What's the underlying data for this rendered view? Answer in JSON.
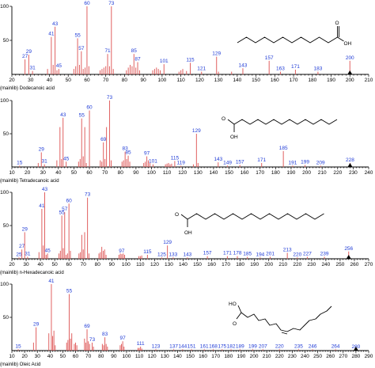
{
  "chart_data": [
    {
      "type": "bar",
      "caption": "(mainlib) Dodecanoic acid",
      "xlim": [
        20,
        210
      ],
      "ylim": [
        0,
        100
      ],
      "x_ticks": [
        20,
        30,
        40,
        50,
        60,
        70,
        80,
        90,
        100,
        110,
        120,
        130,
        140,
        150,
        160,
        170,
        180,
        190,
        200,
        210
      ],
      "y_ticks": [
        50,
        100
      ],
      "peaks": [
        {
          "x": 27,
          "y": 22,
          "label": "27"
        },
        {
          "x": 29,
          "y": 29,
          "label": "29"
        },
        {
          "x": 31,
          "y": 5,
          "label": "31"
        },
        {
          "x": 41,
          "y": 55,
          "label": "41"
        },
        {
          "x": 43,
          "y": 70,
          "label": "43"
        },
        {
          "x": 45,
          "y": 8,
          "label": "45"
        },
        {
          "x": 55,
          "y": 53,
          "label": "55"
        },
        {
          "x": 57,
          "y": 34,
          "label": "57"
        },
        {
          "x": 60,
          "y": 100,
          "label": "60"
        },
        {
          "x": 71,
          "y": 30,
          "label": "71"
        },
        {
          "x": 73,
          "y": 100,
          "label": "73"
        },
        {
          "x": 85,
          "y": 30,
          "label": "85"
        },
        {
          "x": 87,
          "y": 18,
          "label": "87"
        },
        {
          "x": 101,
          "y": 15,
          "label": "101"
        },
        {
          "x": 115,
          "y": 17,
          "label": "115"
        },
        {
          "x": 121,
          "y": 4,
          "label": "121"
        },
        {
          "x": 129,
          "y": 26,
          "label": "129"
        },
        {
          "x": 143,
          "y": 9,
          "label": "143"
        },
        {
          "x": 157,
          "y": 20,
          "label": "157"
        },
        {
          "x": 163,
          "y": 4,
          "label": "163"
        },
        {
          "x": 171,
          "y": 7,
          "label": "171"
        },
        {
          "x": 183,
          "y": 4,
          "label": "183"
        },
        {
          "x": 200,
          "y": 20,
          "label": "200"
        }
      ],
      "minor": [
        [
          39,
          8
        ],
        [
          42,
          14
        ],
        [
          44,
          6
        ],
        [
          53,
          8
        ],
        [
          54,
          12
        ],
        [
          56,
          14
        ],
        [
          58,
          8
        ],
        [
          59,
          10
        ],
        [
          61,
          12
        ],
        [
          67,
          6
        ],
        [
          68,
          8
        ],
        [
          69,
          10
        ],
        [
          70,
          12
        ],
        [
          72,
          12
        ],
        [
          74,
          8
        ],
        [
          81,
          6
        ],
        [
          82,
          10
        ],
        [
          83,
          14
        ],
        [
          84,
          12
        ],
        [
          86,
          10
        ],
        [
          88,
          6
        ],
        [
          95,
          6
        ],
        [
          96,
          8
        ],
        [
          97,
          10
        ],
        [
          98,
          8
        ],
        [
          99,
          6
        ],
        [
          109,
          4
        ],
        [
          110,
          6
        ],
        [
          111,
          8
        ],
        [
          113,
          5
        ],
        [
          130,
          4
        ],
        [
          137,
          4
        ]
      ],
      "molecule": "lauric"
    },
    {
      "type": "bar",
      "caption": "(mainlib) Tetradecanoic acid",
      "xlim": [
        10,
        240
      ],
      "ylim": [
        0,
        100
      ],
      "x_ticks": [
        10,
        20,
        30,
        40,
        50,
        60,
        70,
        80,
        90,
        100,
        110,
        120,
        130,
        140,
        150,
        160,
        170,
        180,
        190,
        200,
        210,
        220,
        230,
        240
      ],
      "y_ticks": [
        50,
        100
      ],
      "peaks": [
        {
          "x": 15,
          "y": 2,
          "label": "15"
        },
        {
          "x": 29,
          "y": 22,
          "label": "29"
        },
        {
          "x": 31,
          "y": 4,
          "label": "31"
        },
        {
          "x": 43,
          "y": 74,
          "label": "43"
        },
        {
          "x": 45,
          "y": 8,
          "label": "45"
        },
        {
          "x": 55,
          "y": 73,
          "label": "55"
        },
        {
          "x": 60,
          "y": 85,
          "label": "60"
        },
        {
          "x": 69,
          "y": 37,
          "label": "69"
        },
        {
          "x": 73,
          "y": 100,
          "label": "73"
        },
        {
          "x": 83,
          "y": 23,
          "label": "83"
        },
        {
          "x": 85,
          "y": 17,
          "label": "85"
        },
        {
          "x": 97,
          "y": 16,
          "label": "97"
        },
        {
          "x": 101,
          "y": 4,
          "label": "101"
        },
        {
          "x": 115,
          "y": 9,
          "label": "115"
        },
        {
          "x": 119,
          "y": 2,
          "label": "119"
        },
        {
          "x": 129,
          "y": 50,
          "label": "129"
        },
        {
          "x": 143,
          "y": 7,
          "label": "143"
        },
        {
          "x": 149,
          "y": 2,
          "label": "149"
        },
        {
          "x": 157,
          "y": 3,
          "label": "157"
        },
        {
          "x": 171,
          "y": 6,
          "label": "171"
        },
        {
          "x": 185,
          "y": 24,
          "label": "185"
        },
        {
          "x": 191,
          "y": 2,
          "label": "191"
        },
        {
          "x": 199,
          "y": 3,
          "label": "199"
        },
        {
          "x": 209,
          "y": 2,
          "label": "209"
        },
        {
          "x": 228,
          "y": 6,
          "label": "228"
        }
      ],
      "minor": [
        [
          27,
          6
        ],
        [
          39,
          10
        ],
        [
          41,
          60
        ],
        [
          42,
          12
        ],
        [
          53,
          8
        ],
        [
          54,
          12
        ],
        [
          56,
          16
        ],
        [
          57,
          60
        ],
        [
          58,
          6
        ],
        [
          67,
          10
        ],
        [
          68,
          8
        ],
        [
          70,
          12
        ],
        [
          71,
          60
        ],
        [
          74,
          10
        ],
        [
          81,
          8
        ],
        [
          82,
          10
        ],
        [
          84,
          12
        ],
        [
          86,
          8
        ],
        [
          95,
          6
        ],
        [
          96,
          8
        ],
        [
          98,
          10
        ],
        [
          99,
          6
        ],
        [
          109,
          4
        ],
        [
          110,
          5
        ],
        [
          111,
          6
        ],
        [
          112,
          4
        ],
        [
          113,
          5
        ],
        [
          127,
          4
        ],
        [
          130,
          6
        ]
      ],
      "molecule": "myristic"
    },
    {
      "type": "bar",
      "caption": "(mainlib) n-Hexadecanoic acid",
      "xlim": [
        20,
        270
      ],
      "ylim": [
        0,
        100
      ],
      "x_ticks": [
        20,
        30,
        40,
        50,
        60,
        70,
        80,
        90,
        100,
        110,
        120,
        130,
        140,
        150,
        160,
        170,
        180,
        190,
        200,
        210,
        220,
        230,
        240,
        250,
        260,
        270
      ],
      "y_ticks": [
        50,
        100
      ],
      "peaks": [
        {
          "x": 25,
          "y": 2,
          "label": "25"
        },
        {
          "x": 27,
          "y": 14,
          "label": "27"
        },
        {
          "x": 29,
          "y": 40,
          "label": "29"
        },
        {
          "x": 31,
          "y": 3,
          "label": "31"
        },
        {
          "x": 41,
          "y": 75,
          "label": "41"
        },
        {
          "x": 43,
          "y": 100,
          "label": "43"
        },
        {
          "x": 45,
          "y": 8,
          "label": "45"
        },
        {
          "x": 55,
          "y": 65,
          "label": "55"
        },
        {
          "x": 57,
          "y": 70,
          "label": "57"
        },
        {
          "x": 60,
          "y": 83,
          "label": "60"
        },
        {
          "x": 73,
          "y": 92,
          "label": "73"
        },
        {
          "x": 97,
          "y": 7,
          "label": "97"
        },
        {
          "x": 115,
          "y": 6,
          "label": "115"
        },
        {
          "x": 125,
          "y": 2,
          "label": "125"
        },
        {
          "x": 129,
          "y": 20,
          "label": "129"
        },
        {
          "x": 133,
          "y": 2,
          "label": "133"
        },
        {
          "x": 143,
          "y": 2,
          "label": "143"
        },
        {
          "x": 157,
          "y": 4,
          "label": "157"
        },
        {
          "x": 171,
          "y": 4,
          "label": "171"
        },
        {
          "x": 178,
          "y": 4,
          "label": "178"
        },
        {
          "x": 185,
          "y": 3,
          "label": "185"
        },
        {
          "x": 194,
          "y": 2,
          "label": "194"
        },
        {
          "x": 201,
          "y": 3,
          "label": "201"
        },
        {
          "x": 213,
          "y": 9,
          "label": "213"
        },
        {
          "x": 220,
          "y": 2,
          "label": "220"
        },
        {
          "x": 227,
          "y": 3,
          "label": "227"
        },
        {
          "x": 239,
          "y": 3,
          "label": "239"
        },
        {
          "x": 256,
          "y": 11,
          "label": "256"
        }
      ],
      "minor": [
        [
          39,
          10
        ],
        [
          42,
          20
        ],
        [
          44,
          6
        ],
        [
          53,
          8
        ],
        [
          54,
          12
        ],
        [
          56,
          16
        ],
        [
          58,
          6
        ],
        [
          59,
          8
        ],
        [
          61,
          12
        ],
        [
          67,
          8
        ],
        [
          68,
          10
        ],
        [
          69,
          36
        ],
        [
          70,
          14
        ],
        [
          71,
          40
        ],
        [
          74,
          8
        ],
        [
          81,
          8
        ],
        [
          82,
          10
        ],
        [
          83,
          18
        ],
        [
          84,
          12
        ],
        [
          85,
          14
        ],
        [
          86,
          6
        ],
        [
          95,
          6
        ],
        [
          96,
          8
        ],
        [
          98,
          8
        ],
        [
          99,
          6
        ],
        [
          109,
          4
        ],
        [
          110,
          4
        ],
        [
          111,
          5
        ]
      ],
      "molecule": "palmitic"
    },
    {
      "type": "bar",
      "caption": "(mainlib) Oleic Acid",
      "xlim": [
        10,
        290
      ],
      "ylim": [
        0,
        100
      ],
      "x_ticks": [
        10,
        20,
        30,
        40,
        50,
        60,
        70,
        80,
        90,
        100,
        110,
        120,
        130,
        140,
        150,
        160,
        170,
        180,
        190,
        200,
        210,
        220,
        230,
        240,
        250,
        260,
        270,
        280,
        290
      ],
      "y_ticks": [
        50,
        100
      ],
      "peaks": [
        {
          "x": 15,
          "y": 2,
          "label": "15"
        },
        {
          "x": 29,
          "y": 35,
          "label": "29"
        },
        {
          "x": 41,
          "y": 100,
          "label": "41"
        },
        {
          "x": 55,
          "y": 85,
          "label": "55"
        },
        {
          "x": 69,
          "y": 32,
          "label": "69"
        },
        {
          "x": 73,
          "y": 12,
          "label": "73"
        },
        {
          "x": 83,
          "y": 20,
          "label": "83"
        },
        {
          "x": 97,
          "y": 14,
          "label": "97"
        },
        {
          "x": 111,
          "y": 6,
          "label": "111"
        },
        {
          "x": 123,
          "y": 2,
          "label": "123"
        },
        {
          "x": 137,
          "y": 2,
          "label": "137"
        },
        {
          "x": 144,
          "y": 2,
          "label": "144"
        },
        {
          "x": 151,
          "y": 2,
          "label": "151"
        },
        {
          "x": 161,
          "y": 2,
          "label": "161"
        },
        {
          "x": 168,
          "y": 2,
          "label": "168"
        },
        {
          "x": 175,
          "y": 2,
          "label": "175"
        },
        {
          "x": 182,
          "y": 2,
          "label": "182"
        },
        {
          "x": 189,
          "y": 2,
          "label": "189"
        },
        {
          "x": 199,
          "y": 2,
          "label": "199"
        },
        {
          "x": 207,
          "y": 2,
          "label": "207"
        },
        {
          "x": 220,
          "y": 2,
          "label": "220"
        },
        {
          "x": 235,
          "y": 2,
          "label": "235"
        },
        {
          "x": 246,
          "y": 2,
          "label": "246"
        },
        {
          "x": 264,
          "y": 2,
          "label": "264"
        },
        {
          "x": 280,
          "y": 1,
          "label": "280"
        }
      ],
      "minor": [
        [
          27,
          12
        ],
        [
          39,
          26
        ],
        [
          42,
          22
        ],
        [
          43,
          30
        ],
        [
          44,
          8
        ],
        [
          53,
          12
        ],
        [
          54,
          16
        ],
        [
          56,
          18
        ],
        [
          57,
          26
        ],
        [
          59,
          10
        ],
        [
          60,
          12
        ],
        [
          61,
          8
        ],
        [
          67,
          18
        ],
        [
          68,
          12
        ],
        [
          70,
          14
        ],
        [
          71,
          10
        ],
        [
          74,
          6
        ],
        [
          81,
          10
        ],
        [
          82,
          8
        ],
        [
          84,
          10
        ],
        [
          85,
          6
        ],
        [
          95,
          8
        ],
        [
          96,
          10
        ],
        [
          98,
          6
        ],
        [
          109,
          4
        ],
        [
          110,
          4
        ],
        [
          112,
          3
        ]
      ],
      "molecule": "oleic"
    }
  ]
}
